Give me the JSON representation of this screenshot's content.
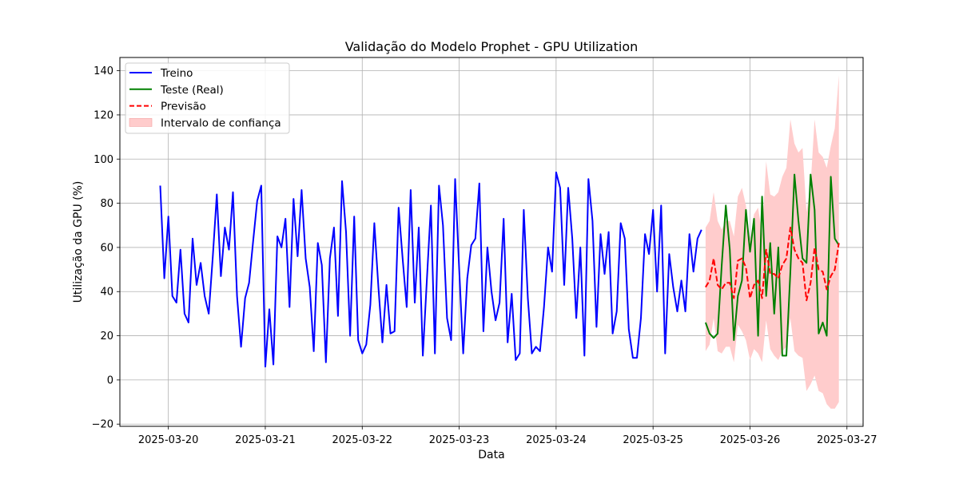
{
  "chart_data": {
    "type": "line",
    "title": "Validação do Modelo Prophet - GPU Utilization",
    "xlabel": "Data",
    "ylabel": "Utilização da GPU (%)",
    "xlim": [
      "2025-03-19 12:00",
      "2025-03-27 04:00"
    ],
    "ylim": [
      -21,
      146
    ],
    "grid": true,
    "legend_position": "upper-left",
    "x_ticks": [
      "2025-03-20",
      "2025-03-21",
      "2025-03-22",
      "2025-03-23",
      "2025-03-24",
      "2025-03-25",
      "2025-03-26",
      "2025-03-27"
    ],
    "y_ticks": [
      -20,
      0,
      20,
      40,
      60,
      80,
      100,
      120,
      140
    ],
    "series": [
      {
        "name": "Treino",
        "color": "#0000ff",
        "style": "solid",
        "start": "2025-03-19 22:00",
        "step_hours": 1,
        "values": [
          88,
          46,
          74,
          38,
          35,
          59,
          30,
          26,
          64,
          43,
          53,
          38,
          30,
          56,
          84,
          47,
          69,
          59,
          85,
          38,
          15,
          37,
          44,
          63,
          81,
          88,
          6,
          32,
          7,
          65,
          60,
          73,
          33,
          82,
          56,
          86,
          55,
          42,
          13,
          62,
          52,
          8,
          55,
          69,
          29,
          90,
          67,
          20,
          74,
          18,
          12,
          16,
          34,
          71,
          42,
          17,
          43,
          21,
          22,
          78,
          55,
          33,
          86,
          35,
          69,
          11,
          45,
          79,
          12,
          88,
          70,
          28,
          18,
          91,
          50,
          12,
          46,
          61,
          64,
          89,
          22,
          60,
          40,
          27,
          35,
          73,
          17,
          39,
          9,
          12,
          77,
          37,
          12,
          15,
          13,
          33,
          60,
          49,
          94,
          87,
          43,
          87,
          64,
          28,
          60,
          11,
          91,
          72,
          24,
          66,
          48,
          67,
          21,
          31,
          71,
          64,
          23,
          10,
          10,
          28,
          66,
          57,
          77,
          40,
          79,
          12,
          57,
          42,
          31,
          45,
          31,
          66,
          49,
          64,
          68
        ]
      },
      {
        "name": "Teste (Real)",
        "color": "#008000",
        "style": "solid",
        "start": "2025-03-25 13:00",
        "step_hours": 1,
        "values": [
          26,
          21,
          19,
          21,
          52,
          79,
          59,
          18,
          38,
          45,
          77,
          58,
          73,
          20,
          83,
          38,
          62,
          30,
          60,
          11,
          11,
          49,
          93,
          72,
          55,
          53,
          93,
          77,
          21,
          26,
          20,
          92,
          64,
          61
        ]
      },
      {
        "name": "Previsão",
        "color": "#ff0000",
        "style": "dashed",
        "start": "2025-03-25 13:00",
        "step_hours": 1,
        "values": [
          42,
          45,
          55,
          43,
          41,
          44,
          44,
          37,
          54,
          55,
          51,
          37,
          43,
          45,
          37,
          59,
          48,
          48,
          46,
          52,
          55,
          69,
          59,
          55,
          53,
          36,
          44,
          60,
          50,
          49,
          41,
          47,
          50,
          62
        ]
      }
    ],
    "confidence_band": {
      "name": "Intervalo de confiança",
      "color": "#ffcccc",
      "start": "2025-03-25 13:00",
      "step_hours": 1,
      "upper": [
        69,
        72,
        85,
        72,
        68,
        72,
        72,
        65,
        83,
        87,
        79,
        63,
        75,
        78,
        66,
        99,
        84,
        83,
        85,
        92,
        96,
        118,
        107,
        103,
        105,
        76,
        88,
        118,
        103,
        101,
        96,
        106,
        114,
        138
      ],
      "lower": [
        13,
        16,
        28,
        13,
        12,
        15,
        15,
        8,
        25,
        22,
        18,
        9,
        14,
        12,
        8,
        27,
        14,
        11,
        9,
        13,
        15,
        28,
        13,
        11,
        10,
        -5,
        -2,
        2,
        -5,
        -6,
        -11,
        -13,
        -13,
        -10
      ]
    }
  }
}
